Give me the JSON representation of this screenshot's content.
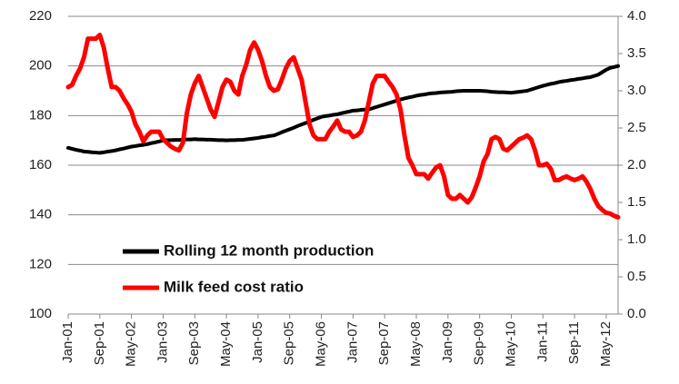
{
  "chart_data": {
    "type": "line",
    "categories": [
      "Jan-01",
      null,
      null,
      null,
      null,
      null,
      null,
      null,
      "Sep-01",
      null,
      null,
      null,
      null,
      null,
      null,
      null,
      "May-02",
      null,
      null,
      null,
      null,
      null,
      null,
      null,
      "Jan-03",
      null,
      null,
      null,
      null,
      null,
      null,
      null,
      "Sep-03",
      null,
      null,
      null,
      null,
      null,
      null,
      null,
      "May-04",
      null,
      null,
      null,
      null,
      null,
      null,
      null,
      "Jan-05",
      null,
      null,
      null,
      null,
      null,
      null,
      null,
      "Sep-05",
      null,
      null,
      null,
      null,
      null,
      null,
      null,
      "May-06",
      null,
      null,
      null,
      null,
      null,
      null,
      null,
      "Jan-07",
      null,
      null,
      null,
      null,
      null,
      null,
      null,
      "Sep-07",
      null,
      null,
      null,
      null,
      null,
      null,
      null,
      "May-08",
      null,
      null,
      null,
      null,
      null,
      null,
      null,
      "Jan-09",
      null,
      null,
      null,
      null,
      null,
      null,
      null,
      "Sep-09",
      null,
      null,
      null,
      null,
      null,
      null,
      null,
      "May-10",
      null,
      null,
      null,
      null,
      null,
      null,
      null,
      "Jan-11",
      null,
      null,
      null,
      null,
      null,
      null,
      null,
      "Sep-11",
      null,
      null,
      null,
      null,
      null,
      null,
      null,
      "May-12",
      null,
      null,
      null
    ],
    "series": [
      {
        "name": "Rolling 12 month production",
        "color": "#000000",
        "axis": "y",
        "values": [
          167,
          166.6,
          166.2,
          165.9,
          165.5,
          165.4,
          165.2,
          165.1,
          165,
          165.2,
          165.5,
          165.7,
          166,
          166.4,
          166.7,
          167.1,
          167.5,
          167.7,
          168,
          168.2,
          168.5,
          168.9,
          169.2,
          169.6,
          170,
          170.1,
          170.1,
          170.2,
          170.2,
          170.3,
          170.4,
          170.4,
          170.5,
          170.4,
          170.4,
          170.3,
          170.3,
          170.2,
          170.1,
          170.1,
          170,
          170.1,
          170.1,
          170.2,
          170.2,
          170.4,
          170.6,
          170.8,
          171,
          171.3,
          171.5,
          171.8,
          172,
          172.6,
          173.3,
          173.9,
          174.5,
          175.1,
          175.8,
          176.4,
          177,
          177.6,
          178.3,
          178.9,
          179.5,
          179.8,
          180,
          180.3,
          180.5,
          180.9,
          181.3,
          181.6,
          182,
          182.1,
          182.3,
          182.4,
          182.5,
          183,
          183.5,
          184,
          184.5,
          185,
          185.5,
          186,
          186.5,
          186.9,
          187.3,
          187.6,
          188,
          188.3,
          188.5,
          188.8,
          189,
          189.1,
          189.3,
          189.4,
          189.5,
          189.6,
          189.8,
          189.9,
          190,
          190,
          190,
          190,
          190,
          189.9,
          189.8,
          189.6,
          189.5,
          189.4,
          189.4,
          189.3,
          189.2,
          189.4,
          189.6,
          189.8,
          190,
          190.5,
          191,
          191.5,
          192,
          192.4,
          192.8,
          193.1,
          193.5,
          193.8,
          194,
          194.3,
          194.5,
          194.8,
          195,
          195.3,
          195.5,
          196,
          196.5,
          197.5,
          198.5,
          199.2,
          199.6,
          200
        ]
      },
      {
        "name": "Milk feed cost ratio",
        "color": "#ff0000",
        "axis": "y2",
        "values": [
          3.05,
          3.08,
          3.2,
          3.3,
          3.45,
          3.7,
          3.7,
          3.7,
          3.75,
          3.58,
          3.3,
          3.05,
          3.05,
          3.0,
          2.9,
          2.82,
          2.72,
          2.55,
          2.45,
          2.32,
          2.4,
          2.45,
          2.45,
          2.45,
          2.35,
          2.3,
          2.25,
          2.22,
          2.2,
          2.3,
          2.7,
          2.95,
          3.1,
          3.2,
          3.05,
          2.9,
          2.75,
          2.65,
          2.85,
          3.05,
          3.15,
          3.12,
          3.0,
          2.95,
          3.2,
          3.35,
          3.55,
          3.65,
          3.55,
          3.4,
          3.2,
          3.05,
          3.0,
          3.02,
          3.15,
          3.3,
          3.4,
          3.45,
          3.3,
          3.15,
          2.85,
          2.55,
          2.4,
          2.35,
          2.35,
          2.35,
          2.45,
          2.52,
          2.6,
          2.48,
          2.45,
          2.45,
          2.38,
          2.4,
          2.45,
          2.6,
          2.85,
          3.1,
          3.2,
          3.2,
          3.2,
          3.12,
          3.05,
          2.95,
          2.75,
          2.4,
          2.1,
          2.0,
          1.88,
          1.88,
          1.88,
          1.82,
          1.9,
          1.97,
          2.0,
          1.85,
          1.6,
          1.55,
          1.55,
          1.6,
          1.55,
          1.5,
          1.57,
          1.7,
          1.85,
          2.05,
          2.15,
          2.35,
          2.38,
          2.35,
          2.22,
          2.2,
          2.25,
          2.3,
          2.35,
          2.37,
          2.4,
          2.35,
          2.2,
          2.0,
          2.0,
          2.02,
          1.95,
          1.8,
          1.8,
          1.83,
          1.85,
          1.82,
          1.8,
          1.82,
          1.85,
          1.78,
          1.68,
          1.55,
          1.45,
          1.4,
          1.36,
          1.35,
          1.32,
          1.3
        ]
      }
    ],
    "ylim": [
      100,
      220
    ],
    "yticks": [
      100,
      120,
      140,
      160,
      180,
      200,
      220
    ],
    "y2lim": [
      0,
      4
    ],
    "y2ticks": [
      {
        "value": 0,
        "label": "0.0"
      },
      0.5,
      {
        "value": 1,
        "label": "1.0"
      },
      1.5,
      {
        "value": 2,
        "label": "2.0"
      },
      2.5,
      {
        "value": 3,
        "label": "3.0"
      },
      3.5,
      {
        "value": 4,
        "label": "4.0"
      }
    ],
    "grid": true,
    "legend": "lower left"
  }
}
